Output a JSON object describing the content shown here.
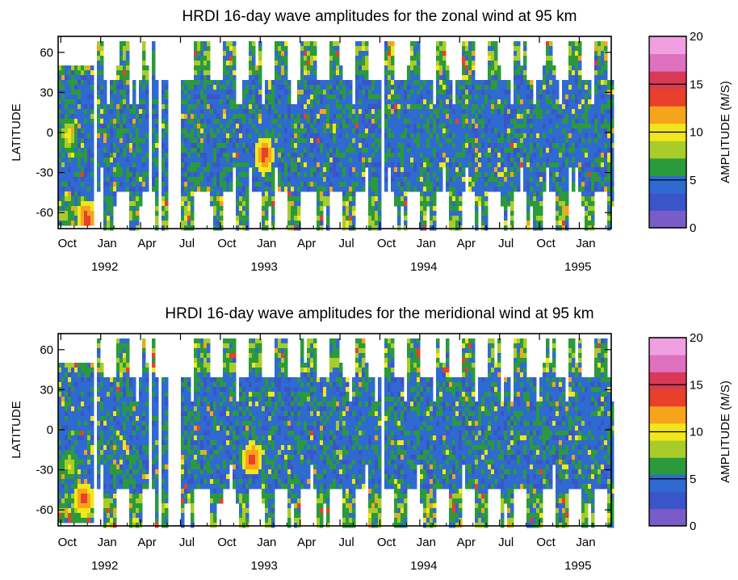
{
  "chart_data": [
    {
      "type": "heatmap",
      "title": "HRDI 16-day wave amplitudes for the zonal wind at 95 km",
      "ylabel": "LATITUDE",
      "xlabel": "",
      "y_ticks": [
        "60",
        "30",
        "0",
        "-30",
        "-60"
      ],
      "y_tick_values": [
        60,
        30,
        0,
        -30,
        -60
      ],
      "ylim": [
        -72,
        72
      ],
      "x_month_labels": [
        "Oct",
        "Jan",
        "Apr",
        "Jul",
        "Oct",
        "Jan",
        "Apr",
        "Jul",
        "Oct",
        "Jan",
        "Apr",
        "Jul",
        "Oct",
        "Jan"
      ],
      "x_month_index": [
        0,
        3,
        6,
        9,
        12,
        15,
        18,
        21,
        24,
        27,
        30,
        33,
        36,
        39
      ],
      "x_year_labels": [
        "1992",
        "1993",
        "1994",
        "1995"
      ],
      "x_year_month_index": [
        3.3,
        15.3,
        27.3,
        38.9
      ],
      "xlim_months": [
        -0.2,
        41.4
      ],
      "colorbar": {
        "label": "AMPLITUDE (M/S)",
        "ticks": [
          "20",
          "15",
          "10",
          "5",
          "0"
        ],
        "tick_values": [
          20,
          15,
          10,
          5,
          0
        ],
        "range": [
          0,
          20
        ],
        "colors": [
          "#7a5cc8",
          "#3a55c8",
          "#2f6ad0",
          "#2a9a3c",
          "#a8cc2a",
          "#f2e61c",
          "#f6a41c",
          "#e8402a",
          "#d83a55",
          "#e070c0",
          "#f0a0e0"
        ]
      },
      "missing_data_gaps_months": [
        [
          2.3,
          2.6
        ],
        [
          6.6,
          6.8
        ],
        [
          7.3,
          7.5
        ],
        [
          8.0,
          8.9
        ],
        [
          24.0,
          24.2
        ]
      ],
      "highlights": [
        {
          "month": 0.5,
          "lat": 0,
          "amplitude": 11
        },
        {
          "month": 15.2,
          "lat": -15,
          "amplitude": 15
        },
        {
          "month": 1.8,
          "lat": -62,
          "amplitude": 15
        }
      ]
    },
    {
      "type": "heatmap",
      "title": "HRDI 16-day wave amplitudes for the meridional wind at 95 km",
      "ylabel": "LATITUDE",
      "xlabel": "",
      "y_ticks": [
        "60",
        "30",
        "0",
        "-30",
        "-60"
      ],
      "y_tick_values": [
        60,
        30,
        0,
        -30,
        -60
      ],
      "ylim": [
        -72,
        72
      ],
      "x_month_labels": [
        "Oct",
        "Jan",
        "Apr",
        "Jul",
        "Oct",
        "Jan",
        "Apr",
        "Jul",
        "Oct",
        "Jan",
        "Apr",
        "Jul",
        "Oct",
        "Jan"
      ],
      "x_month_index": [
        0,
        3,
        6,
        9,
        12,
        15,
        18,
        21,
        24,
        27,
        30,
        33,
        36,
        39
      ],
      "x_year_labels": [
        "1992",
        "1993",
        "1994",
        "1995"
      ],
      "x_year_month_index": [
        3.3,
        15.3,
        27.3,
        38.9
      ],
      "xlim_months": [
        -0.2,
        41.4
      ],
      "colorbar": {
        "label": "AMPLITUDE (M/S)",
        "ticks": [
          "20",
          "15",
          "10",
          "5",
          "0"
        ],
        "tick_values": [
          20,
          15,
          10,
          5,
          0
        ],
        "range": [
          0,
          20
        ],
        "colors": [
          "#7a5cc8",
          "#3a55c8",
          "#2f6ad0",
          "#2a9a3c",
          "#a8cc2a",
          "#f2e61c",
          "#f6a41c",
          "#e8402a",
          "#d83a55",
          "#e070c0",
          "#f0a0e0"
        ]
      },
      "missing_data_gaps_months": [
        [
          2.3,
          2.6
        ],
        [
          6.6,
          6.8
        ],
        [
          7.3,
          7.5
        ],
        [
          8.0,
          8.9
        ],
        [
          24.0,
          24.2
        ]
      ],
      "highlights": [
        {
          "month": 14.3,
          "lat": -20,
          "amplitude": 15
        },
        {
          "month": 1.6,
          "lat": -50,
          "amplitude": 15
        },
        {
          "month": 0.6,
          "lat": -25,
          "amplitude": 10
        }
      ]
    }
  ]
}
